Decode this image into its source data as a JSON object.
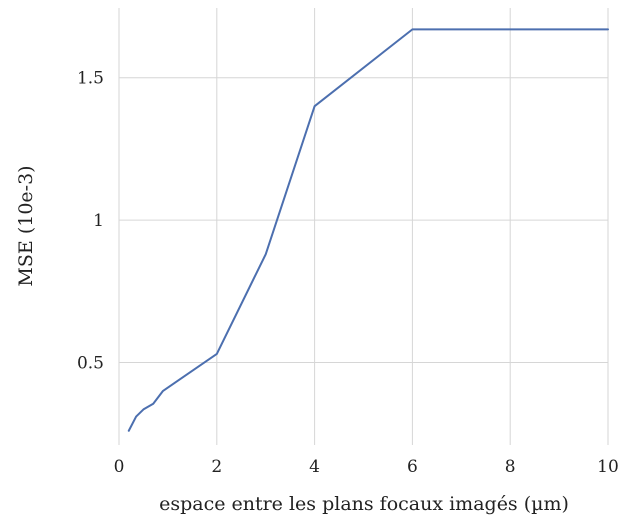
{
  "chart_data": {
    "type": "line",
    "title": "",
    "xlabel": "espace entre les plans focaux imagés (µm)",
    "ylabel": "MSE (10e-3)",
    "xlim": [
      0,
      10
    ],
    "ylim": [
      0.21,
      1.745
    ],
    "xticks": [
      0,
      2,
      4,
      6,
      8,
      10
    ],
    "xtick_labels": [
      "0",
      "2",
      "4",
      "6",
      "8",
      "10"
    ],
    "yticks": [
      0.5,
      1,
      1.5
    ],
    "ytick_labels": [
      "0.5",
      "1",
      "1.5"
    ],
    "grid": true,
    "legend": "none",
    "colors": {
      "line": "#4c6faf",
      "grid": "#d6d6d6",
      "text": "#222222"
    },
    "series": [
      {
        "x": [
          0.2,
          0.35,
          0.5,
          0.7,
          0.9,
          2,
          3,
          4,
          6,
          10
        ],
        "y": [
          0.26,
          0.31,
          0.335,
          0.355,
          0.4,
          0.53,
          0.88,
          1.4,
          1.67,
          1.67
        ]
      }
    ]
  }
}
